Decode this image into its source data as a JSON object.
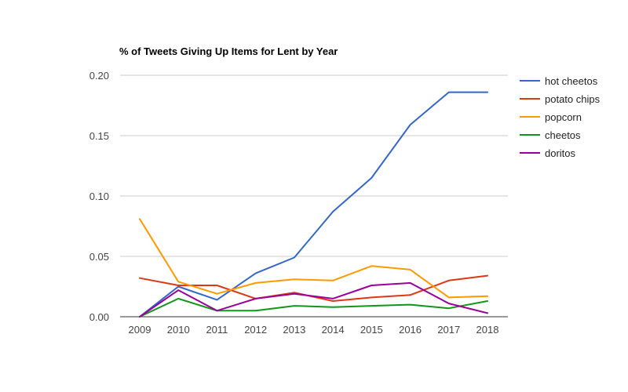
{
  "chart_data": {
    "type": "line",
    "title": "% of Tweets Giving Up Items for Lent by Year",
    "xlabel": "",
    "ylabel": "",
    "x": [
      "2009",
      "2010",
      "2011",
      "2012",
      "2013",
      "2014",
      "2015",
      "2016",
      "2017",
      "2018"
    ],
    "ylim": [
      0,
      0.2
    ],
    "yticks": [
      "0.00",
      "0.05",
      "0.10",
      "0.15",
      "0.20"
    ],
    "grid": true,
    "legend_position": "right",
    "series": [
      {
        "name": "hot cheetos",
        "color": "#3366cc",
        "values": [
          0.0,
          0.025,
          0.014,
          0.036,
          0.049,
          0.087,
          0.115,
          0.159,
          0.186,
          0.186
        ]
      },
      {
        "name": "potato chips",
        "color": "#dc3912",
        "values": [
          0.032,
          0.026,
          0.026,
          0.015,
          0.02,
          0.013,
          0.016,
          0.018,
          0.03,
          0.034
        ]
      },
      {
        "name": "popcorn",
        "color": "#ff9900",
        "values": [
          0.081,
          0.029,
          0.019,
          0.028,
          0.031,
          0.03,
          0.042,
          0.039,
          0.016,
          0.017
        ]
      },
      {
        "name": "cheetos",
        "color": "#109618",
        "values": [
          0.0,
          0.015,
          0.005,
          0.005,
          0.009,
          0.008,
          0.009,
          0.01,
          0.007,
          0.013
        ]
      },
      {
        "name": "doritos",
        "color": "#990099",
        "values": [
          0.0,
          0.022,
          0.005,
          0.015,
          0.019,
          0.015,
          0.026,
          0.028,
          0.011,
          0.003
        ]
      }
    ]
  }
}
